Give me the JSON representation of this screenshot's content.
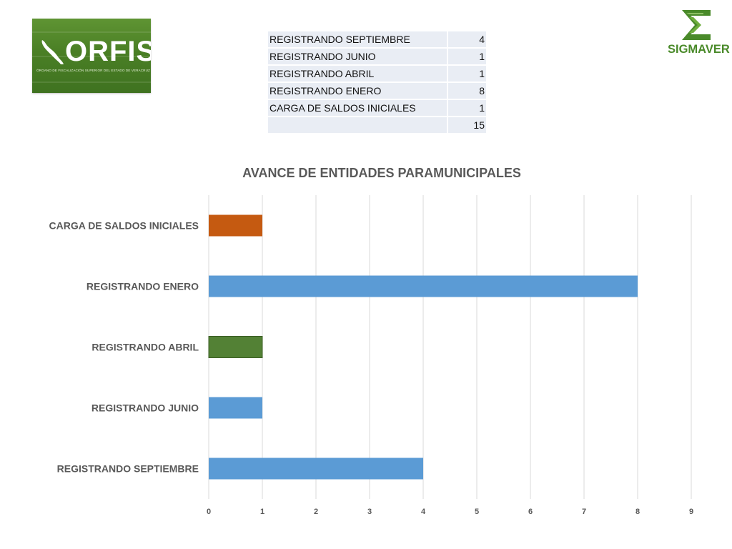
{
  "logos": {
    "orfis_name": "ORFIS",
    "orfis_tagline": "ÓRGANO DE FISCALIZACIÓN SUPERIOR DEL ESTADO DE VERACRUZ",
    "sigmaver_name": "SIGMAVER"
  },
  "colors": {
    "orfis_green": "#4a7f25",
    "sigmaver_green": "#4a8a2a",
    "bar_blue": "#5b9bd5",
    "bar_orange": "#c55a11",
    "bar_green": "#538135"
  },
  "summary_table": {
    "rows": [
      {
        "label": "REGISTRANDO SEPTIEMBRE",
        "value": "4"
      },
      {
        "label": "REGISTRANDO JUNIO",
        "value": "1"
      },
      {
        "label": "REGISTRANDO ABRIL",
        "value": "1"
      },
      {
        "label": "REGISTRANDO ENERO",
        "value": "8"
      },
      {
        "label": "CARGA DE SALDOS INICIALES",
        "value": "1"
      }
    ],
    "total": "15"
  },
  "chart_data": {
    "type": "bar",
    "orientation": "horizontal",
    "title": "AVANCE DE ENTIDADES PARAMUNICIPALES",
    "categories": [
      "REGISTRANDO SEPTIEMBRE",
      "REGISTRANDO JUNIO",
      "REGISTRANDO ABRIL",
      "REGISTRANDO ENERO",
      "CARGA DE SALDOS INICIALES"
    ],
    "values": [
      4,
      1,
      1,
      8,
      1
    ],
    "bar_colors": [
      "#5b9bd5",
      "#5b9bd5",
      "#538135",
      "#5b9bd5",
      "#c55a11"
    ],
    "xlim": [
      0,
      9
    ],
    "xticks": [
      0,
      1,
      2,
      3,
      4,
      5,
      6,
      7,
      8,
      9
    ],
    "grid": true,
    "legend": "none"
  }
}
